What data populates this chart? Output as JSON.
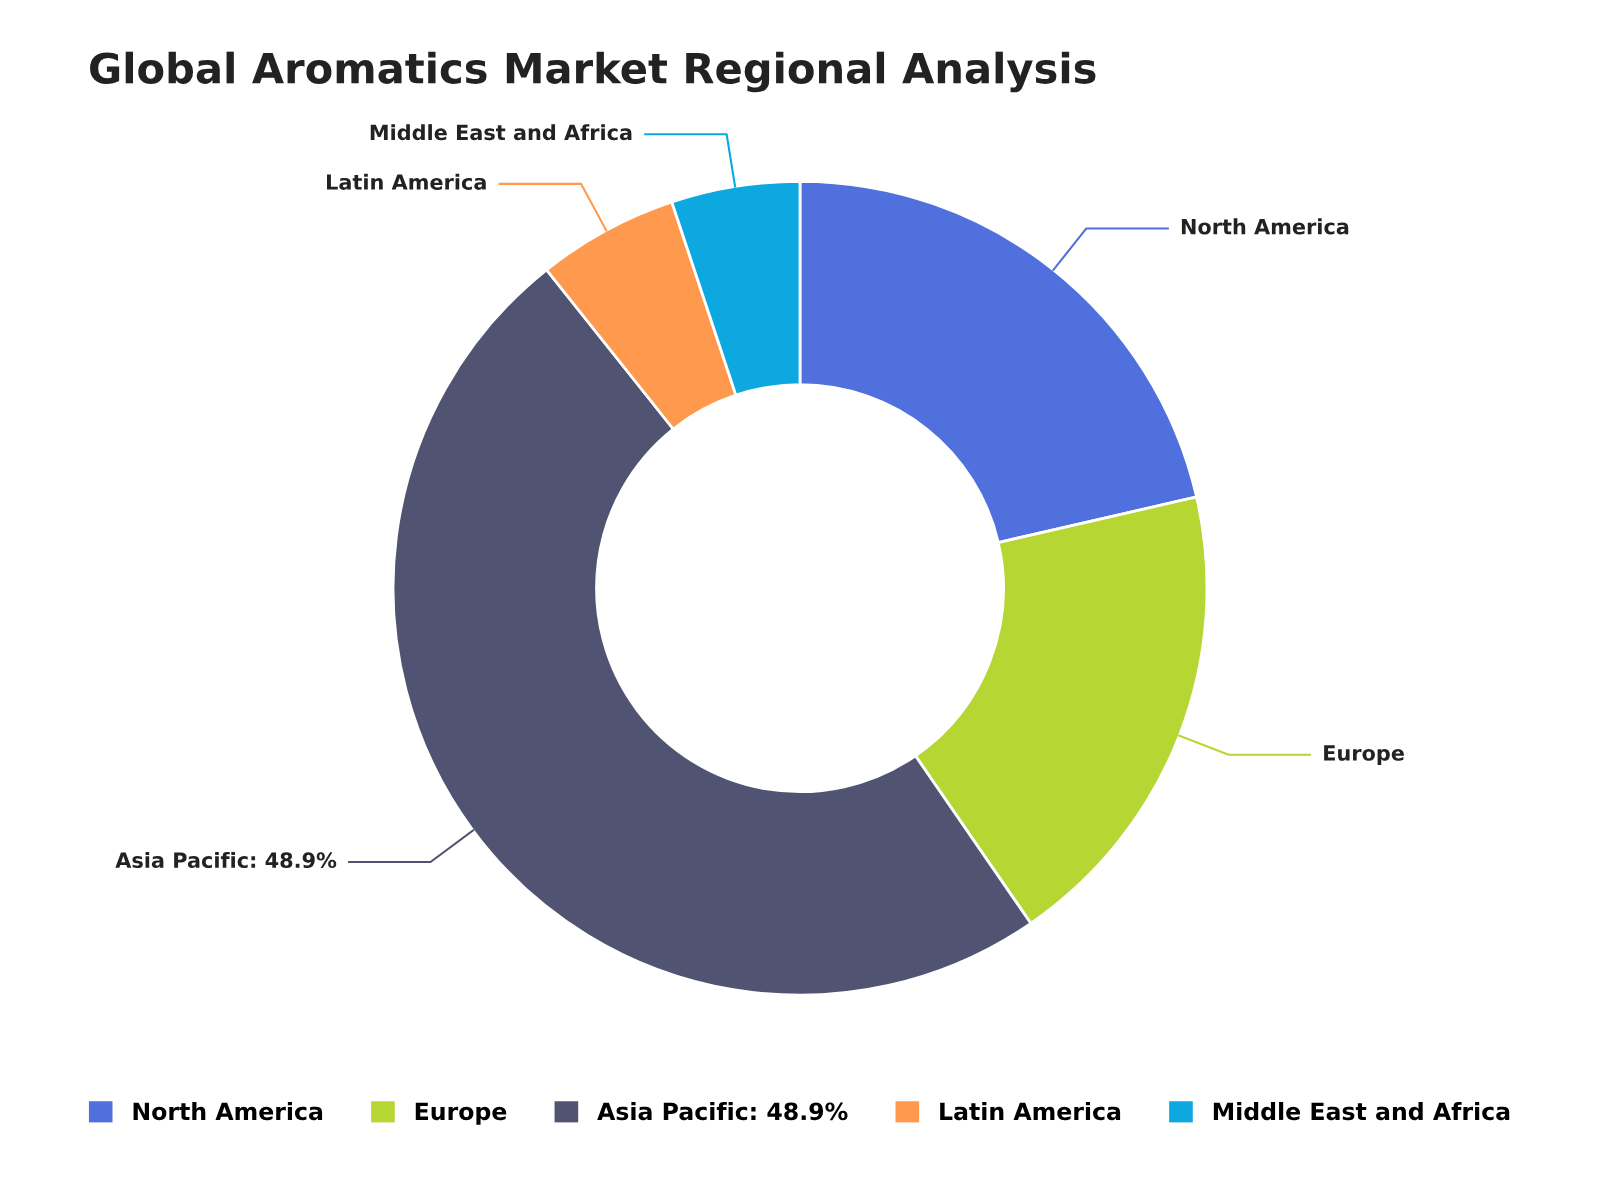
{
  "chart_data": {
    "type": "donut",
    "title": "Global Aromatics Market Regional Analysis",
    "categories": [
      "North America",
      "Europe",
      "Asia Pacific: 48.9%",
      "Latin America",
      "Middle East and Africa"
    ],
    "values": [
      21.4,
      19.0,
      48.9,
      5.6,
      5.1
    ],
    "colors": [
      "#5070dd",
      "#b6d634",
      "#505372",
      "#ff994d",
      "#0ca8df"
    ],
    "legend": "bottom"
  }
}
